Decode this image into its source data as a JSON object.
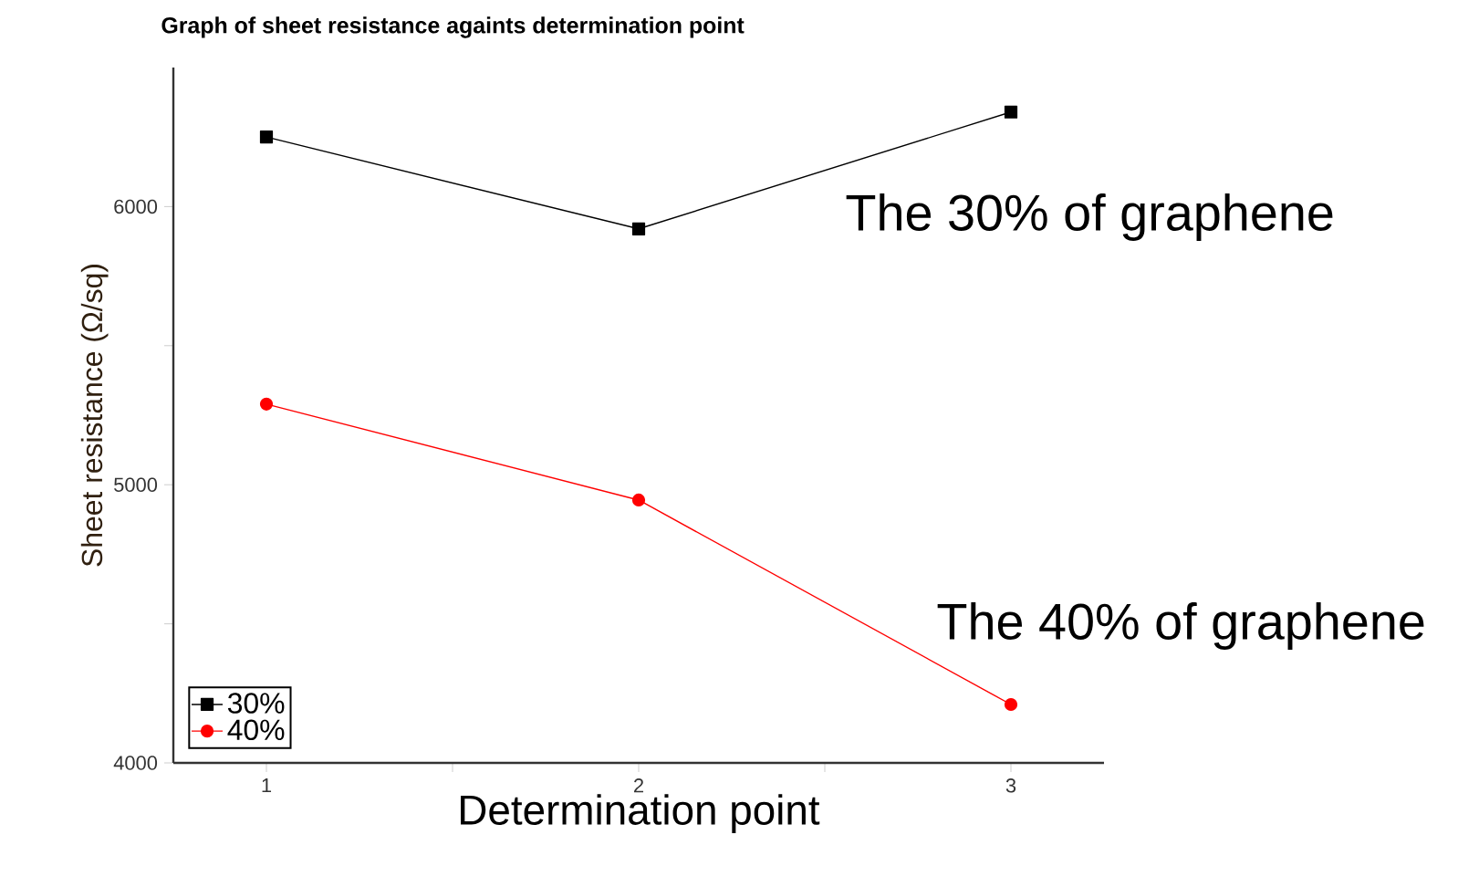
{
  "chart_data": {
    "type": "line",
    "title": "Graph of sheet resistance againts determination point",
    "xlabel": "Determination point",
    "ylabel": "Sheet resistance (Ω/sq)",
    "x": [
      1,
      2,
      3
    ],
    "series": [
      {
        "name": "30%",
        "color": "#000000",
        "marker": "square",
        "values": [
          6250,
          5920,
          6340
        ]
      },
      {
        "name": "40%",
        "color": "#ff0000",
        "marker": "circle",
        "values": [
          5290,
          4945,
          4210
        ]
      }
    ],
    "xlim": [
      0.75,
      3.25
    ],
    "ylim": [
      4000,
      6500
    ],
    "xticks": [
      1,
      {
        "value": 1.5,
        "label": null
      },
      2,
      {
        "value": 2.5,
        "label": null
      },
      3
    ],
    "yticks": [
      4000,
      {
        "value": 4500,
        "label": null
      },
      5000,
      {
        "value": 5500,
        "label": null
      },
      6000
    ],
    "legend": "bottom left",
    "annotations": [
      "The 30% of graphene",
      "The 40% of graphene"
    ]
  }
}
